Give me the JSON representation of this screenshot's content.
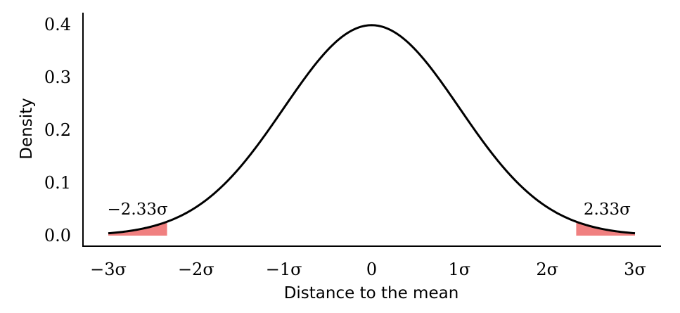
{
  "chart_data": {
    "type": "area",
    "xlabel": "Distance to the mean",
    "ylabel": "Density",
    "xlim": [
      -3,
      3
    ],
    "ylim": [
      0,
      0.4
    ],
    "x_ticks": [
      -3,
      -2,
      -1,
      0,
      1,
      2,
      3
    ],
    "x_tick_labels": [
      "−3σ",
      "−2σ",
      "−1σ",
      "0",
      "1σ",
      "2σ",
      "3σ"
    ],
    "y_ticks": [
      0.0,
      0.1,
      0.2,
      0.3,
      0.4
    ],
    "y_tick_labels": [
      "0.0",
      "0.1",
      "0.2",
      "0.3",
      "0.4"
    ],
    "series": [
      {
        "curve": "normal-pdf",
        "mean": 0,
        "sd": 1,
        "color": "#000000",
        "x": [
          -3,
          -2.5,
          -2,
          -1.5,
          -1,
          -0.5,
          0,
          0.5,
          1,
          1.5,
          2,
          2.5,
          3
        ],
        "y": [
          0.0044,
          0.0175,
          0.054,
          0.1295,
          0.242,
          0.3521,
          0.3989,
          0.3521,
          0.242,
          0.1295,
          0.054,
          0.0175,
          0.0044
        ]
      }
    ],
    "shaded_tails": [
      {
        "from": -3,
        "to": -2.33,
        "color": "#f08080"
      },
      {
        "from": 2.33,
        "to": 3,
        "color": "#f08080"
      }
    ],
    "annotations": [
      {
        "x": -2.33,
        "text": "−2.33σ"
      },
      {
        "x": 2.33,
        "text": "2.33σ"
      }
    ],
    "grid": false
  }
}
